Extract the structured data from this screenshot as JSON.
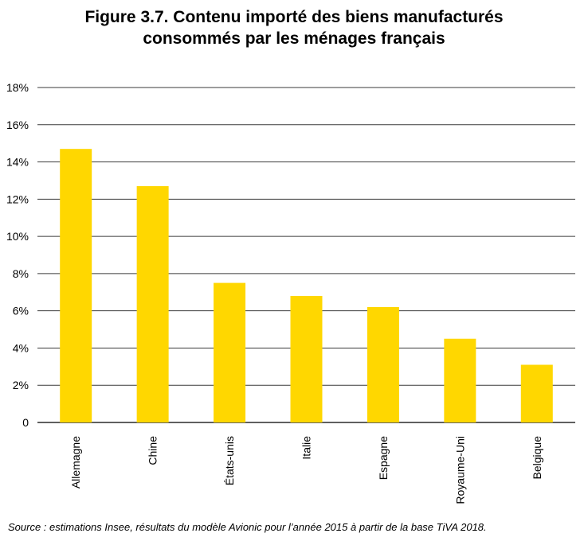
{
  "title_line1": "Figure 3.7. Contenu importé des biens manufacturés",
  "title_line2": "consommés par les ménages français",
  "source": "Source : estimations Insee, résultats du modèle Avionic pour l’année 2015 à partir de la base TiVA 2018.",
  "colors": {
    "bar": "#FFD700",
    "grid": "#3a3a3a",
    "axis": "#000000"
  },
  "chart_data": {
    "type": "bar",
    "categories": [
      "Allemagne",
      "Chine",
      "États-unis",
      "Italie",
      "Espagne",
      "Royaume-Uni",
      "Belgique"
    ],
    "values": [
      14.7,
      12.7,
      7.5,
      6.8,
      6.2,
      4.5,
      3.1
    ],
    "title": "Figure 3.7. Contenu importé des biens manufacturés consommés par les ménages français",
    "ylim": [
      0,
      18
    ],
    "yticks": [
      0,
      2,
      4,
      6,
      8,
      10,
      12,
      14,
      16,
      18
    ],
    "ytick_labels": [
      "0",
      "2%",
      "4%",
      "6%",
      "8%",
      "10%",
      "12%",
      "14%",
      "16%",
      "18%"
    ],
    "grid": true,
    "legend": "none"
  }
}
